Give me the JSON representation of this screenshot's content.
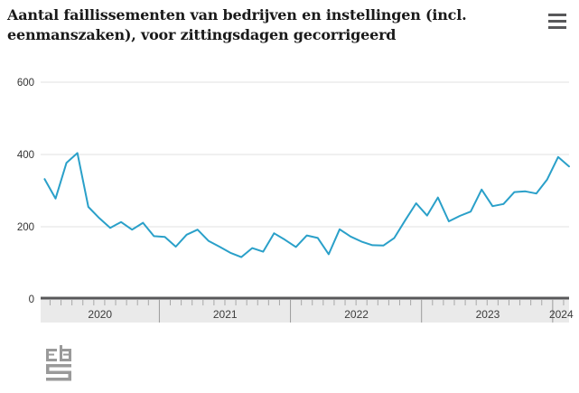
{
  "header": {
    "title": "Aantal faillissementen van bedrijven en instellingen (incl. eenmanszaken), voor zittingsdagen gecorrigeerd",
    "menu_icon": "hamburger-icon"
  },
  "footer": {
    "logo_icon": "cbs-logo"
  },
  "colors": {
    "line": "#2aa0c9",
    "grid": "#e2e2e2",
    "axis_band_fill": "#eaeaea",
    "axis_band_border": "#58585a",
    "tick": "#a8a8a8",
    "year_separator": "#9b9b9b",
    "axis_text": "#3c3c3c",
    "ytick_text": "#333333",
    "logo_gray": "#9a9a9a"
  },
  "chart_data": {
    "type": "line",
    "title": "Aantal faillissementen van bedrijven en instellingen (incl. eenmanszaken), voor zittingsdagen gecorrigeerd",
    "x": [
      "2020-02",
      "2020-03",
      "2020-04",
      "2020-05",
      "2020-06",
      "2020-07",
      "2020-08",
      "2020-09",
      "2020-10",
      "2020-11",
      "2020-12",
      "2021-01",
      "2021-02",
      "2021-03",
      "2021-04",
      "2021-05",
      "2021-06",
      "2021-07",
      "2021-08",
      "2021-09",
      "2021-10",
      "2021-11",
      "2021-12",
      "2022-01",
      "2022-02",
      "2022-03",
      "2022-04",
      "2022-05",
      "2022-06",
      "2022-07",
      "2022-08",
      "2022-09",
      "2022-10",
      "2022-11",
      "2022-12",
      "2023-01",
      "2023-02",
      "2023-03",
      "2023-04",
      "2023-05",
      "2023-06",
      "2023-07",
      "2023-08",
      "2023-09",
      "2023-10",
      "2023-11",
      "2023-12",
      "2024-01",
      "2024-02"
    ],
    "values": [
      332,
      278,
      377,
      404,
      255,
      224,
      197,
      213,
      192,
      211,
      174,
      172,
      145,
      178,
      192,
      161,
      145,
      128,
      116,
      141,
      131,
      182,
      164,
      144,
      176,
      169,
      124,
      193,
      173,
      159,
      149,
      148,
      169,
      218,
      265,
      231,
      281,
      215,
      230,
      242,
      303,
      257,
      263,
      296,
      298,
      292,
      331,
      393,
      367
    ],
    "xtick_labels": [
      "2020",
      "2021",
      "2022",
      "2023",
      "2024"
    ],
    "ytick_labels": [
      "0",
      "200",
      "400",
      "600"
    ],
    "yticks": [
      0,
      200,
      400,
      600
    ],
    "ylim": [
      0,
      650
    ],
    "xlabel": "",
    "ylabel": "",
    "grid": "horizontal",
    "legend": "none",
    "line_color": "#2aa0c9"
  }
}
